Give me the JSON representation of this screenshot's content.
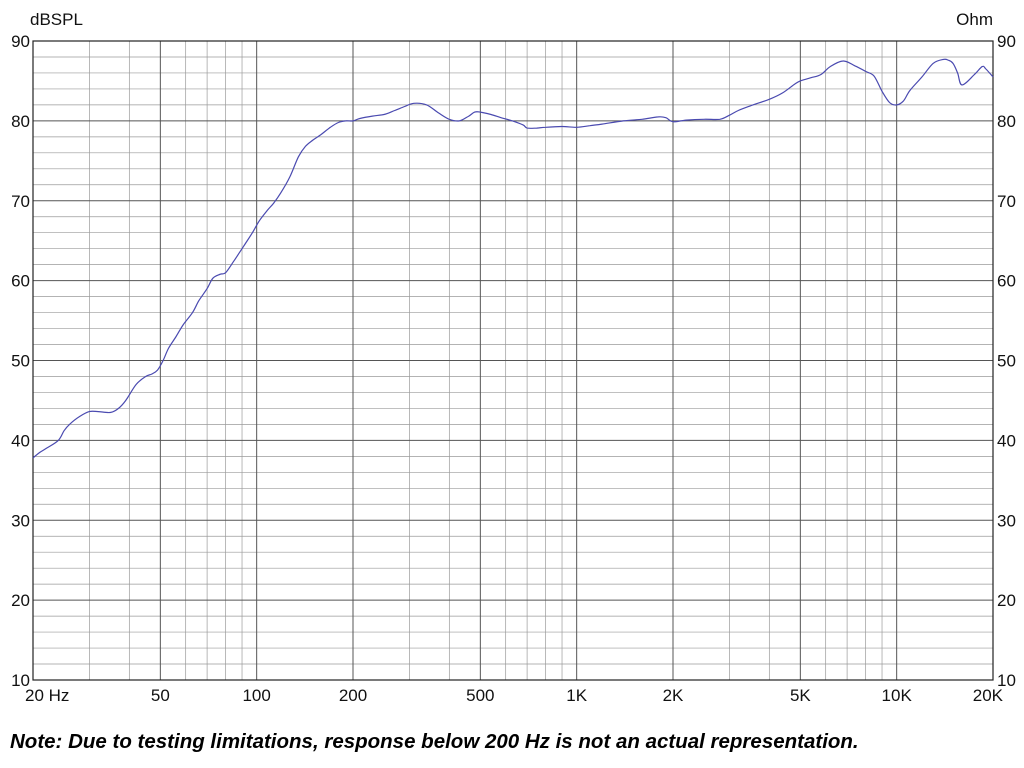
{
  "chart_data": {
    "type": "line",
    "left_axis_unit": "dBSPL",
    "right_axis_unit": "Ohm",
    "x_scale": "log",
    "xlim": [
      20,
      20000
    ],
    "ylim": [
      10,
      90
    ],
    "grid": true,
    "y_ticks": [
      10,
      20,
      30,
      40,
      50,
      60,
      70,
      80,
      90
    ],
    "y_tick_labels": [
      "10",
      "20",
      "30",
      "40",
      "50",
      "60",
      "70",
      "80",
      "90"
    ],
    "x_tick_labels": [
      {
        "value": 20,
        "label": "20 Hz"
      },
      {
        "value": 50,
        "label": "50"
      },
      {
        "value": 100,
        "label": "100"
      },
      {
        "value": 200,
        "label": "200"
      },
      {
        "value": 500,
        "label": "500"
      },
      {
        "value": 1000,
        "label": "1K"
      },
      {
        "value": 2000,
        "label": "2K"
      },
      {
        "value": 5000,
        "label": "5K"
      },
      {
        "value": 10000,
        "label": "10K"
      },
      {
        "value": 20000,
        "label": "20K"
      }
    ],
    "line_color": "#4a4ab0",
    "series": [
      {
        "x": [
          20,
          21,
          22,
          24,
          25,
          26,
          28,
          30,
          32,
          35,
          37,
          39,
          42,
          45,
          47,
          49,
          51,
          53,
          56,
          59,
          63,
          66,
          70,
          73,
          77,
          80,
          85,
          91,
          97,
          102,
          108,
          113,
          119,
          127,
          135,
          142,
          150,
          159,
          170,
          180,
          190,
          200,
          210,
          230,
          250,
          270,
          290,
          310,
          340,
          370,
          400,
          430,
          460,
          480,
          500,
          540,
          580,
          630,
          680,
          700,
          750,
          800,
          900,
          1000,
          1100,
          1200,
          1400,
          1600,
          1800,
          1900,
          2000,
          2200,
          2500,
          2800,
          3000,
          3200,
          3500,
          4000,
          4400,
          4800,
          5000,
          5400,
          5800,
          6200,
          6800,
          7400,
          8000,
          8500,
          9000,
          9500,
          10000,
          10500,
          11000,
          12000,
          13000,
          14000,
          14500,
          15000,
          15500,
          16000,
          17500,
          18500,
          19000,
          20000
        ],
        "y": [
          37.8,
          38.5,
          39.0,
          40.0,
          41.2,
          42.0,
          43.0,
          43.6,
          43.6,
          43.5,
          44.0,
          45.0,
          47.0,
          48.0,
          48.3,
          48.8,
          50.0,
          51.5,
          53.0,
          54.5,
          56.0,
          57.5,
          59.0,
          60.3,
          60.8,
          61.0,
          62.5,
          64.3,
          66.0,
          67.5,
          68.8,
          69.7,
          71.0,
          73.0,
          75.5,
          76.8,
          77.6,
          78.3,
          79.2,
          79.8,
          80.0,
          80.0,
          80.3,
          80.6,
          80.8,
          81.3,
          81.8,
          82.2,
          82.0,
          81.0,
          80.2,
          80.0,
          80.6,
          81.1,
          81.1,
          80.8,
          80.4,
          80.0,
          79.5,
          79.1,
          79.1,
          79.2,
          79.3,
          79.2,
          79.4,
          79.6,
          80.0,
          80.2,
          80.5,
          80.4,
          79.9,
          80.1,
          80.2,
          80.2,
          80.7,
          81.3,
          81.9,
          82.7,
          83.5,
          84.6,
          85.0,
          85.4,
          85.8,
          86.8,
          87.5,
          86.9,
          86.2,
          85.6,
          83.7,
          82.3,
          82.0,
          82.5,
          83.8,
          85.5,
          87.2,
          87.7,
          87.6,
          87.2,
          86.0,
          84.5,
          85.8,
          86.8,
          86.5,
          85.5
        ]
      }
    ]
  },
  "note": "Note:  Due to testing limitations, response below 200 Hz is not an actual representation."
}
